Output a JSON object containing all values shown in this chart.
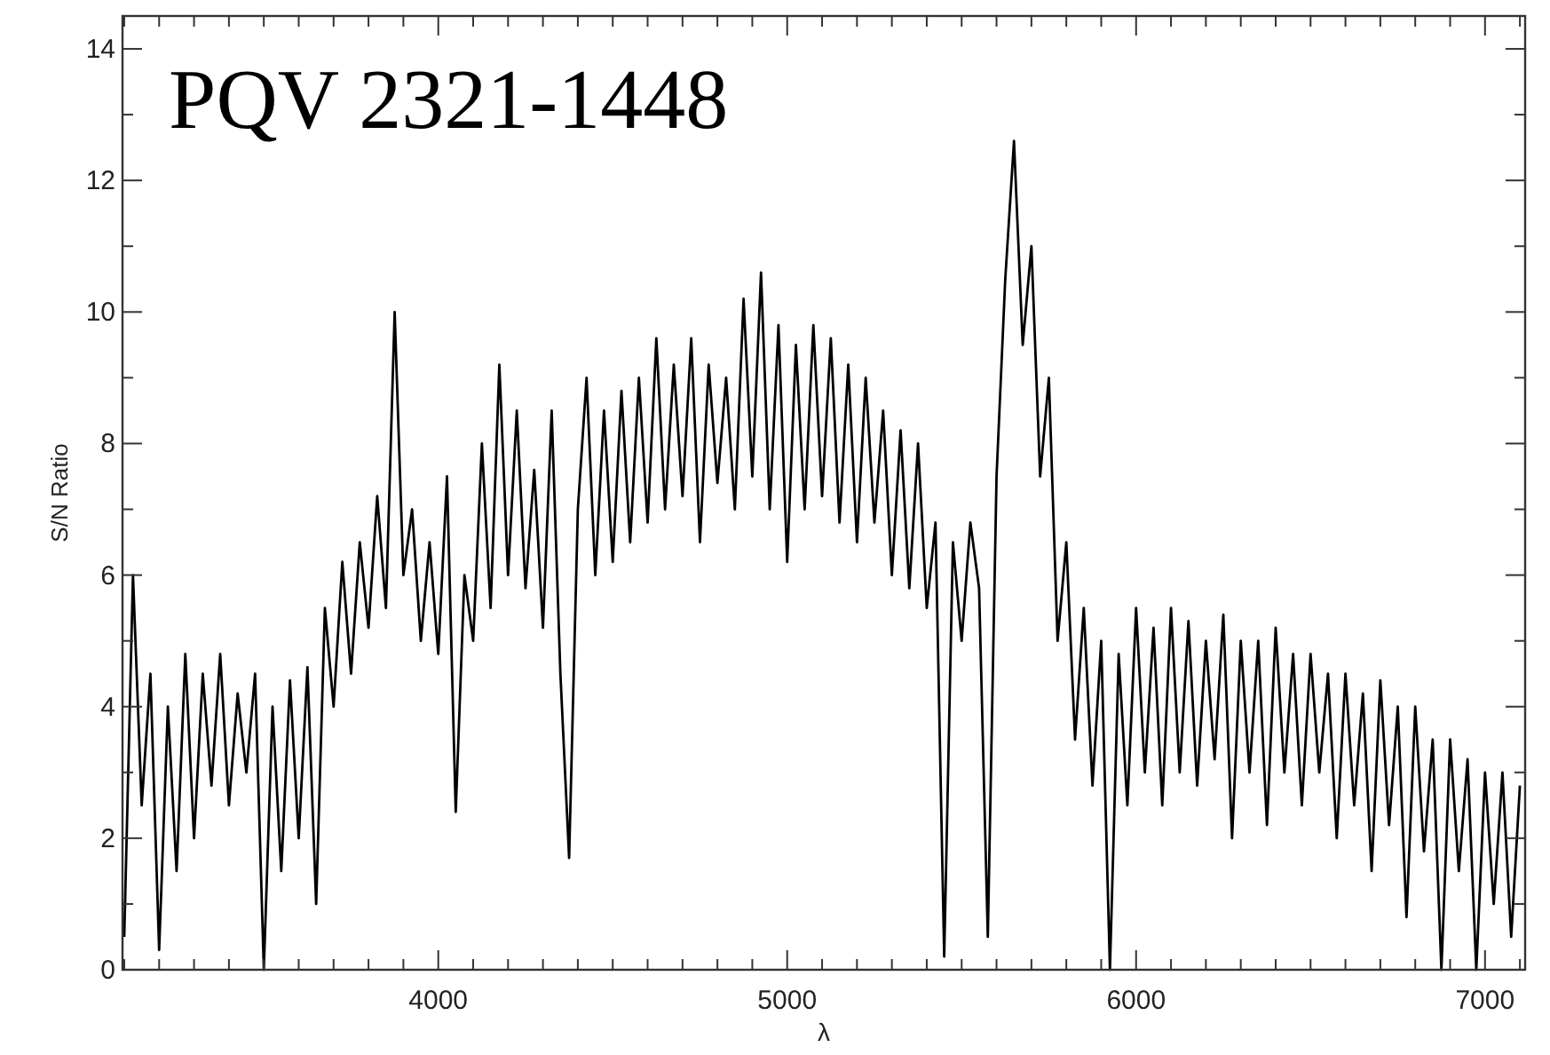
{
  "chart_data": {
    "type": "line",
    "title": "PQV 2321-1448",
    "xlabel": "λ",
    "ylabel": "S/N Ratio",
    "xlim": [
      3095,
      7115
    ],
    "ylim": [
      0,
      14.5
    ],
    "xticks": [
      {
        "value": 3100,
        "label": null
      },
      {
        "value": 3200,
        "label": null
      },
      {
        "value": 3300,
        "label": null
      },
      {
        "value": 3400,
        "label": null
      },
      {
        "value": 3500,
        "label": null
      },
      {
        "value": 3600,
        "label": null
      },
      {
        "value": 3700,
        "label": null
      },
      {
        "value": 3800,
        "label": null
      },
      {
        "value": 3900,
        "label": null
      },
      4000,
      {
        "value": 4100,
        "label": null
      },
      {
        "value": 4200,
        "label": null
      },
      {
        "value": 4300,
        "label": null
      },
      {
        "value": 4400,
        "label": null
      },
      {
        "value": 4500,
        "label": null
      },
      {
        "value": 4600,
        "label": null
      },
      {
        "value": 4700,
        "label": null
      },
      {
        "value": 4800,
        "label": null
      },
      {
        "value": 4900,
        "label": null
      },
      5000,
      {
        "value": 5100,
        "label": null
      },
      {
        "value": 5200,
        "label": null
      },
      {
        "value": 5300,
        "label": null
      },
      {
        "value": 5400,
        "label": null
      },
      {
        "value": 5500,
        "label": null
      },
      {
        "value": 5600,
        "label": null
      },
      {
        "value": 5700,
        "label": null
      },
      {
        "value": 5800,
        "label": null
      },
      {
        "value": 5900,
        "label": null
      },
      6000,
      {
        "value": 6100,
        "label": null
      },
      {
        "value": 6200,
        "label": null
      },
      {
        "value": 6300,
        "label": null
      },
      {
        "value": 6400,
        "label": null
      },
      {
        "value": 6500,
        "label": null
      },
      {
        "value": 6600,
        "label": null
      },
      {
        "value": 6700,
        "label": null
      },
      {
        "value": 6800,
        "label": null
      },
      {
        "value": 6900,
        "label": null
      },
      7000,
      {
        "value": 7100,
        "label": null
      }
    ],
    "yticks": [
      0,
      {
        "value": 1,
        "label": null
      },
      2,
      {
        "value": 3,
        "label": null
      },
      4,
      {
        "value": 5,
        "label": null
      },
      6,
      {
        "value": 7,
        "label": null
      },
      8,
      {
        "value": 9,
        "label": null
      },
      10,
      {
        "value": 11,
        "label": null
      },
      12,
      {
        "value": 13,
        "label": null
      },
      14
    ],
    "grid": false,
    "marker": "none",
    "line_style": "solid",
    "series": [
      {
        "color": "#000000",
        "x": [
          3100,
          3125,
          3150,
          3175,
          3200,
          3225,
          3250,
          3275,
          3300,
          3325,
          3350,
          3375,
          3400,
          3425,
          3450,
          3475,
          3500,
          3525,
          3550,
          3575,
          3600,
          3625,
          3650,
          3675,
          3700,
          3725,
          3750,
          3775,
          3800,
          3825,
          3850,
          3875,
          3900,
          3925,
          3950,
          3975,
          4000,
          4025,
          4050,
          4075,
          4100,
          4125,
          4150,
          4175,
          4200,
          4225,
          4250,
          4275,
          4300,
          4325,
          4350,
          4375,
          4400,
          4425,
          4450,
          4475,
          4500,
          4525,
          4550,
          4575,
          4600,
          4625,
          4650,
          4675,
          4700,
          4725,
          4750,
          4775,
          4800,
          4825,
          4850,
          4875,
          4900,
          4925,
          4950,
          4975,
          5000,
          5025,
          5050,
          5075,
          5100,
          5125,
          5150,
          5175,
          5200,
          5225,
          5250,
          5275,
          5300,
          5325,
          5350,
          5375,
          5400,
          5425,
          5450,
          5475,
          5500,
          5525,
          5550,
          5575,
          5600,
          5625,
          5650,
          5675,
          5700,
          5725,
          5750,
          5775,
          5800,
          5825,
          5850,
          5875,
          5900,
          5925,
          5950,
          5975,
          6000,
          6025,
          6050,
          6075,
          6100,
          6125,
          6150,
          6175,
          6200,
          6225,
          6250,
          6275,
          6300,
          6325,
          6350,
          6375,
          6400,
          6425,
          6450,
          6475,
          6500,
          6525,
          6550,
          6575,
          6600,
          6625,
          6650,
          6675,
          6700,
          6725,
          6750,
          6775,
          6800,
          6825,
          6850,
          6875,
          6900,
          6925,
          6950,
          6975,
          7000,
          7025,
          7050,
          7075,
          7100
        ],
        "values": [
          0.5,
          6.0,
          2.5,
          4.5,
          0.3,
          4.0,
          1.5,
          4.8,
          2.0,
          4.5,
          2.8,
          4.8,
          2.5,
          4.2,
          3.0,
          4.5,
          0.0,
          4.0,
          1.5,
          4.4,
          2.0,
          4.6,
          1.0,
          5.5,
          4.0,
          6.2,
          4.5,
          6.5,
          5.2,
          7.2,
          5.5,
          10.0,
          6.0,
          7.0,
          5.0,
          6.5,
          4.8,
          7.5,
          2.4,
          6.0,
          5.0,
          8.0,
          5.5,
          9.2,
          6.0,
          8.5,
          5.8,
          7.6,
          5.2,
          8.5,
          4.5,
          1.7,
          7.0,
          9.0,
          6.0,
          8.5,
          6.2,
          8.8,
          6.5,
          9.0,
          6.8,
          9.6,
          7.0,
          9.2,
          7.2,
          9.6,
          6.5,
          9.2,
          7.4,
          9.0,
          7.0,
          10.2,
          7.5,
          10.6,
          7.0,
          9.8,
          6.2,
          9.5,
          7.0,
          9.8,
          7.2,
          9.6,
          6.8,
          9.2,
          6.5,
          9.0,
          6.8,
          8.5,
          6.0,
          8.2,
          5.8,
          8.0,
          5.5,
          6.8,
          0.2,
          6.5,
          5.0,
          6.8,
          5.8,
          0.5,
          7.5,
          10.5,
          12.6,
          9.5,
          11.0,
          7.5,
          9.0,
          5.0,
          6.5,
          3.5,
          5.5,
          2.8,
          5.0,
          0.0,
          4.8,
          2.5,
          5.5,
          3.0,
          5.2,
          2.5,
          5.5,
          3.0,
          5.3,
          2.8,
          5.0,
          3.2,
          5.4,
          2.0,
          5.0,
          3.0,
          5.0,
          2.2,
          5.2,
          3.0,
          4.8,
          2.5,
          4.8,
          3.0,
          4.5,
          2.0,
          4.5,
          2.5,
          4.2,
          1.5,
          4.4,
          2.2,
          4.0,
          0.8,
          4.0,
          1.8,
          3.5,
          0.0,
          3.5,
          1.5,
          3.2,
          0.0,
          3.0,
          1.0,
          3.0,
          0.5,
          2.8
        ]
      }
    ]
  }
}
